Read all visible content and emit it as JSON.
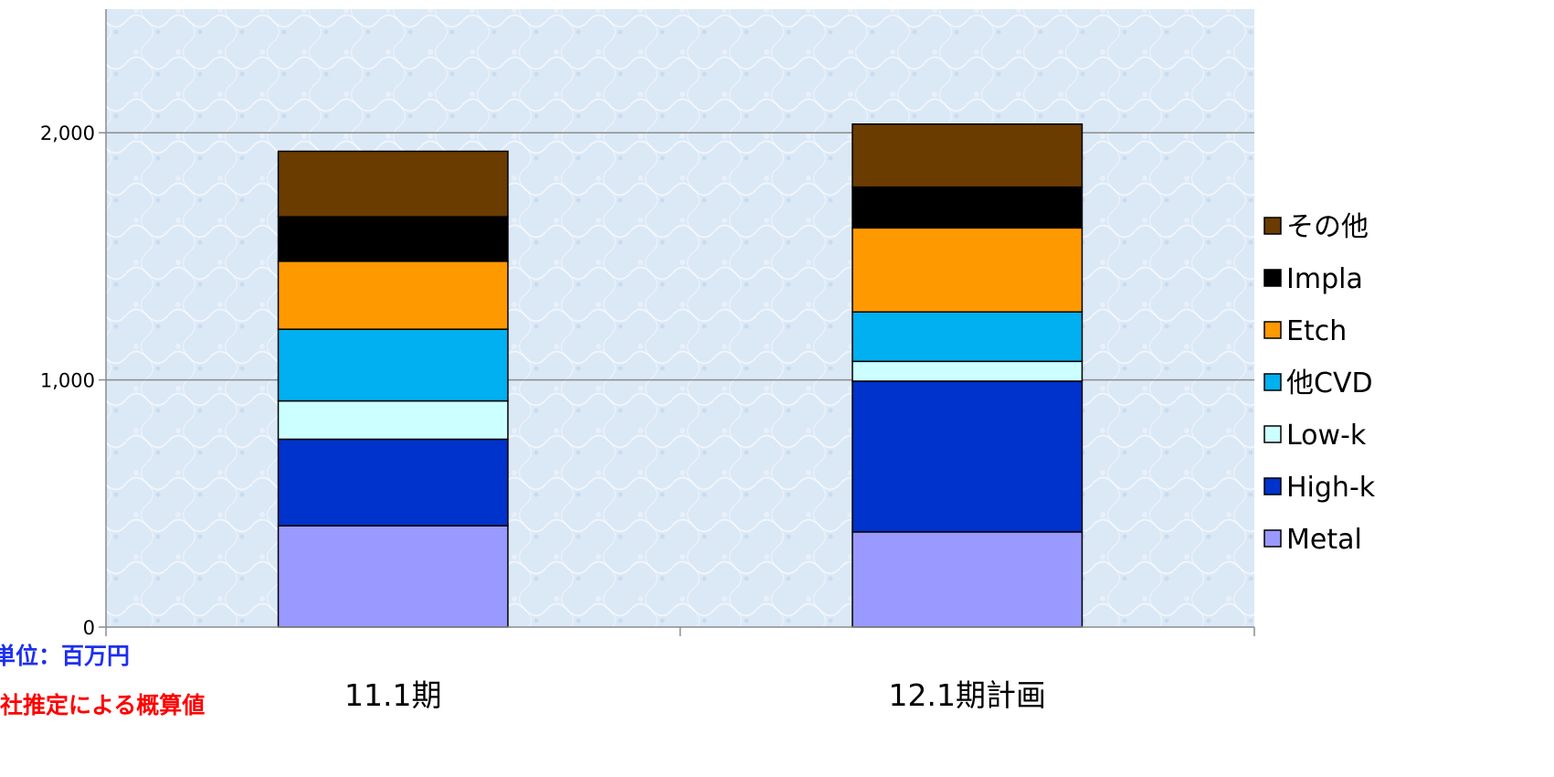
{
  "chart_data": {
    "type": "bar",
    "stacked": true,
    "categories": [
      "11.1期",
      "12.1期計画"
    ],
    "series": [
      {
        "name": "Metal",
        "color": "#9999ff",
        "values": [
          410,
          385
        ]
      },
      {
        "name": "High-k",
        "color": "#0033cc",
        "values": [
          350,
          610
        ]
      },
      {
        "name": "Low-k",
        "color": "#ccffff",
        "values": [
          155,
          80
        ]
      },
      {
        "name": "他CVD",
        "color": "#00b0f0",
        "values": [
          290,
          200
        ]
      },
      {
        "name": "Etch",
        "color": "#ff9900",
        "values": [
          275,
          340
        ]
      },
      {
        "name": "Impla",
        "color": "#000000",
        "values": [
          180,
          165
        ]
      },
      {
        "name": "その他",
        "color": "#6b3c00",
        "values": [
          265,
          255
        ]
      }
    ],
    "yticks": [
      "0",
      "1,000",
      "2,000"
    ],
    "ytick_values": [
      0,
      1000,
      2000
    ],
    "ylim": [
      0,
      2500
    ],
    "grid": true,
    "legend_position": "right",
    "plot_background": "#dce9f7"
  },
  "notes": {
    "unit": "単位：百万円",
    "estimate": "当社推定による概算値"
  }
}
